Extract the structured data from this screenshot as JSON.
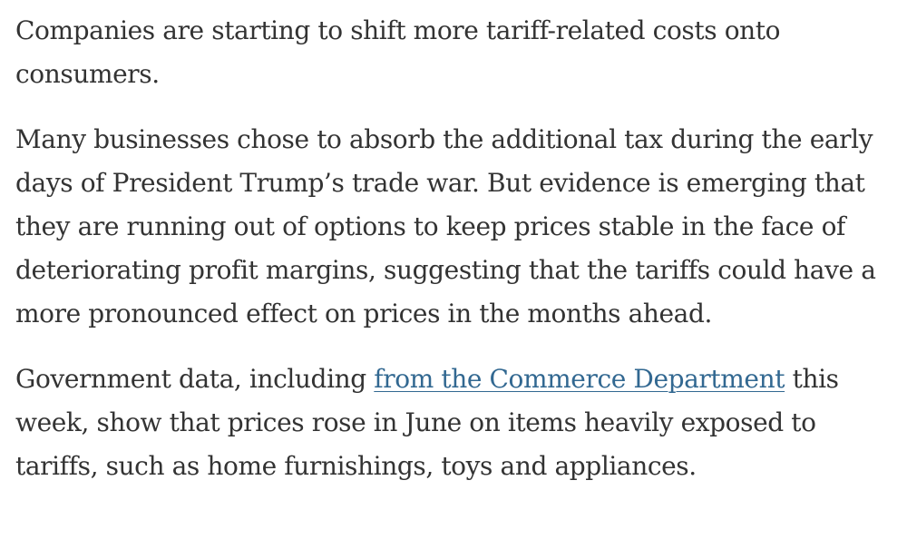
{
  "article": {
    "paragraphs": [
      {
        "text": "Companies are starting to shift more tariff-related costs onto consumers."
      },
      {
        "text": "Many businesses chose to absorb the additional tax during the early days of President Trump’s trade war. But evidence is emerging that they are running out of options to keep prices stable in the face of deteriorating profit margins, suggesting that the tariffs could have a more pronounced effect on prices in the months ahead."
      },
      {
        "before_link": "Government data, including ",
        "link_text": "from the Commerce Department",
        "after_link": " this week, show that prices rose in June on items heavily exposed to tariffs, such as home furnishings, toys and appliances."
      }
    ],
    "colors": {
      "text": "#333333",
      "link": "#326891",
      "background": "#ffffff"
    }
  }
}
